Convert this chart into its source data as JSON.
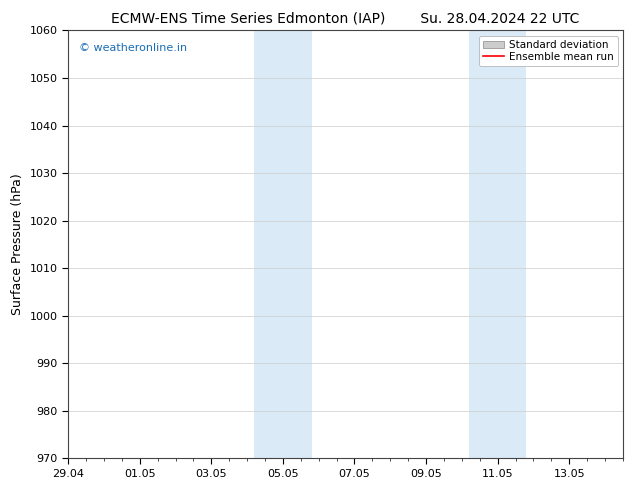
{
  "title_left": "ECMW-ENS Time Series Edmonton (IAP)",
  "title_right": "Su. 28.04.2024 22 UTC",
  "ylabel": "Surface Pressure (hPa)",
  "watermark": "© weatheronline.in",
  "watermark_color": "#1a6db5",
  "ylim": [
    970,
    1060
  ],
  "yticks": [
    970,
    980,
    990,
    1000,
    1010,
    1020,
    1030,
    1040,
    1050,
    1060
  ],
  "xlim_start": 0,
  "xlim_end": 15.5,
  "xtick_positions": [
    0,
    2,
    4,
    6,
    8,
    10,
    12,
    14
  ],
  "xtick_labels": [
    "29.04",
    "01.05",
    "03.05",
    "05.05",
    "07.05",
    "09.05",
    "11.05",
    "13.05"
  ],
  "shaded_bands": [
    {
      "x_start": 5.2,
      "x_end": 6.8
    },
    {
      "x_start": 11.2,
      "x_end": 12.8
    }
  ],
  "shaded_color": "#daeaf7",
  "background_color": "#ffffff",
  "grid_color": "#cccccc",
  "legend_std_color": "#cccccc",
  "legend_mean_color": "#ff0000",
  "title_fontsize": 10,
  "label_fontsize": 9,
  "tick_fontsize": 8
}
